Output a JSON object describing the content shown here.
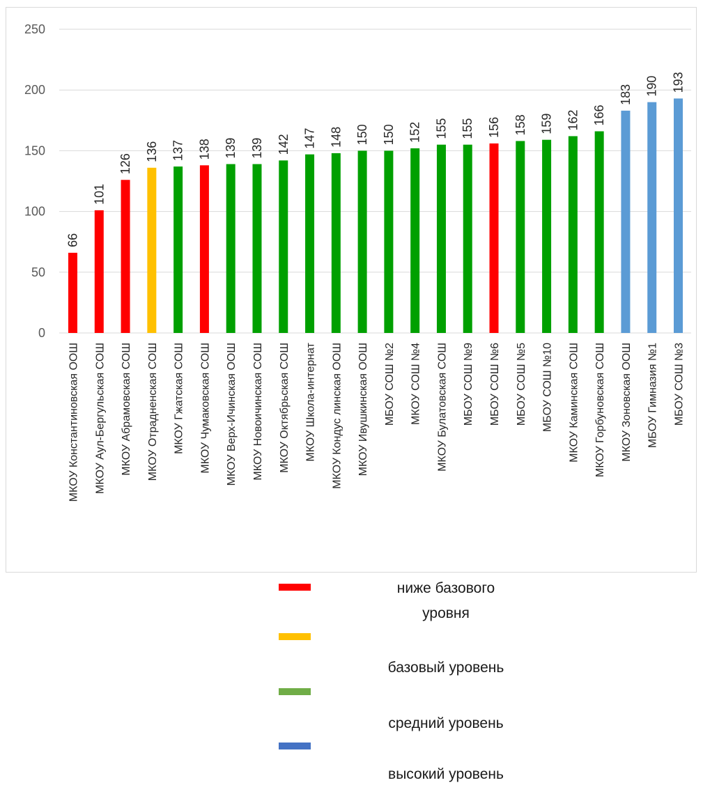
{
  "chart_data": {
    "type": "bar",
    "ylim": [
      0,
      250
    ],
    "yticks": [
      0,
      50,
      100,
      150,
      200,
      250
    ],
    "grid": true,
    "legend_position": "bottom",
    "categories": [
      "МКОУ Константиновская ООШ",
      "МКОУ Аул-Бергульская СОШ",
      "МКОУ Абрамовская СОШ",
      "МКОУ Отрадненская СОШ",
      "МКОУ Гжатская СОШ",
      "МКОУ Чумаковская СОШ",
      "МКОУ Верх-Ичинская ООШ",
      "МКОУ Новоичинская СОШ",
      "МКОУ Октябрьская СОШ",
      "МКОУ Школа-интернат",
      "МКОУ Кондус линская ООШ",
      "МКОУ Ивушкинская ООШ",
      "МБОУ СОШ №2",
      "МКОУ СОШ №4",
      "МКОУ Булатовская СОШ",
      "МБОУ СОШ №9",
      "МБОУ СОШ №6",
      "МБОУ СОШ №5",
      "МБОУ СОШ №10",
      "МКОУ Каминская СОШ",
      "МКОУ Горбуновская СОШ",
      "МКОУ Зоновская ООШ",
      "МБОУ Гимназия №1",
      "МБОУ СОШ №3"
    ],
    "values": [
      66,
      101,
      126,
      136,
      137,
      138,
      139,
      139,
      142,
      147,
      148,
      150,
      150,
      152,
      155,
      155,
      156,
      158,
      159,
      162,
      166,
      183,
      190,
      193
    ],
    "bar_levels": [
      0,
      0,
      0,
      1,
      2,
      0,
      2,
      2,
      2,
      2,
      2,
      2,
      2,
      2,
      2,
      2,
      0,
      2,
      2,
      2,
      2,
      3,
      3,
      3
    ],
    "bar_colors": [
      "#ff0000",
      "#ffc000",
      "#00a000",
      "#5b9bd5"
    ],
    "legend": [
      {
        "label": "ниже базового уровня",
        "color": "#ff0000"
      },
      {
        "label": "базовый уровень",
        "color": "#ffc000"
      },
      {
        "label": "средний уровень",
        "color": "#70ad47"
      },
      {
        "label": "высокий уровень",
        "color": "#4472c4"
      }
    ]
  }
}
